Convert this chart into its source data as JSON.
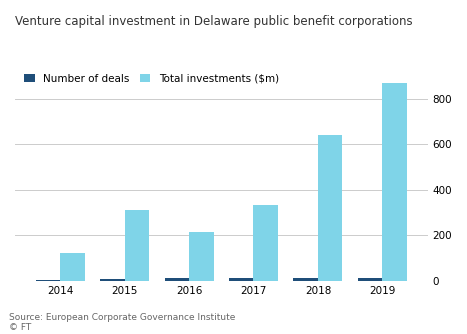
{
  "title": "Venture capital investment in Delaware public benefit corporations",
  "years": [
    "2014",
    "2015",
    "2016",
    "2017",
    "2018",
    "2019"
  ],
  "num_deals": [
    5,
    8,
    10,
    12,
    13,
    10
  ],
  "total_investments": [
    120,
    310,
    215,
    335,
    640,
    870
  ],
  "color_deals": "#1f4e79",
  "color_investments": "#7fd4e8",
  "legend_deals": "Number of deals",
  "legend_investments": "Total investments ($m)",
  "source": "Source: European Corporate Governance Institute",
  "footer": "© FT",
  "ylim": [
    0,
    880
  ],
  "yticks": [
    0,
    200,
    400,
    600,
    800
  ],
  "background_color": "#ffffff",
  "grid_color": "#cccccc",
  "title_fontsize": 8.5,
  "legend_fontsize": 7.5,
  "tick_fontsize": 7.5,
  "source_fontsize": 6.5
}
